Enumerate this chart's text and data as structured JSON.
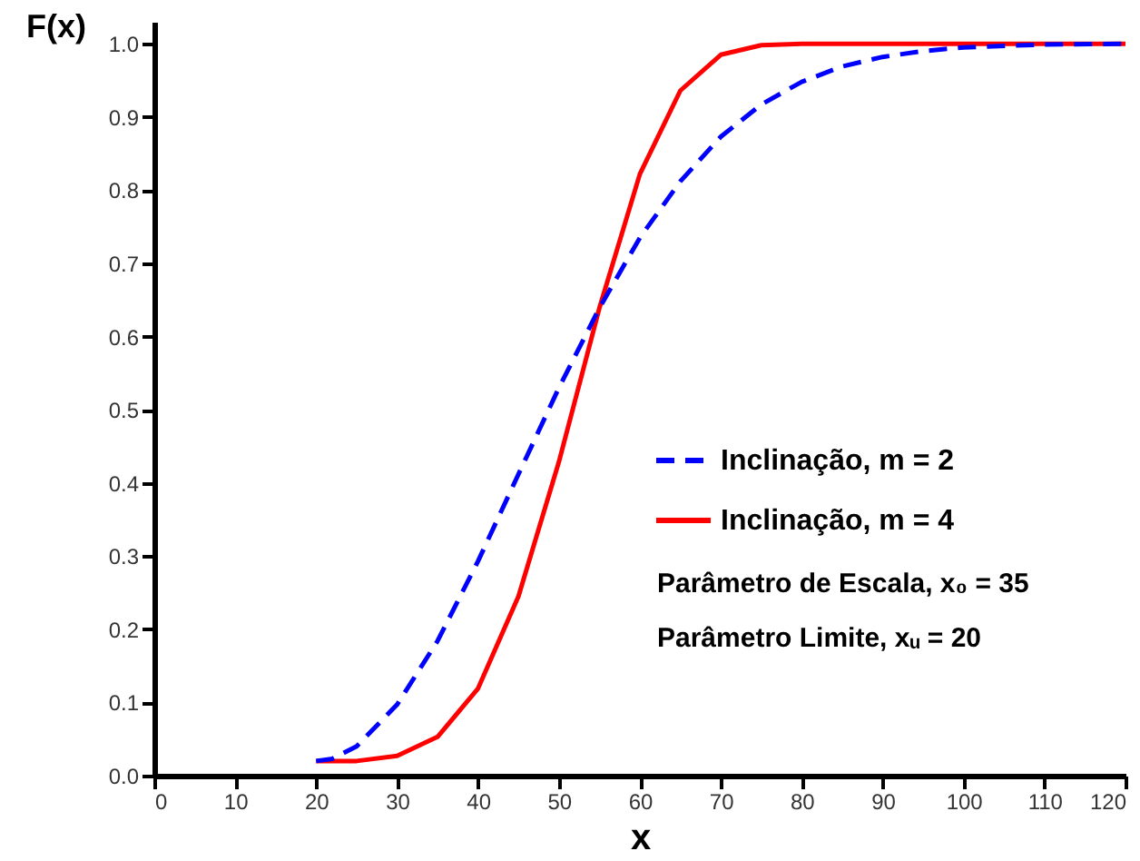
{
  "chart_data": {
    "type": "line",
    "xlabel": "x",
    "ylabel": "F(x)",
    "xlim": [
      0,
      120
    ],
    "ylim": [
      0,
      1.03
    ],
    "xticks": [
      0,
      10,
      20,
      30,
      40,
      50,
      60,
      70,
      80,
      90,
      100,
      110,
      120
    ],
    "yticks": [
      {
        "value": 0,
        "label": "0.0"
      },
      {
        "value": 0.1,
        "label": "0.1"
      },
      {
        "value": 0.2,
        "label": "0.2"
      },
      {
        "value": 0.3,
        "label": "0.3"
      },
      {
        "value": 0.4,
        "label": "0.4"
      },
      {
        "value": 0.5,
        "label": "0.5"
      },
      {
        "value": 0.6,
        "label": "0.6"
      },
      {
        "value": 0.7,
        "label": "0.7"
      },
      {
        "value": 0.8,
        "label": "0.8"
      },
      {
        "value": 0.9,
        "label": "0.9"
      },
      {
        "value": 1,
        "label": "1.0"
      }
    ],
    "grid": false,
    "legend": "bottom right",
    "marker": "none",
    "series": [
      {
        "name": "Inclinação, m = 2",
        "color": "#0000ff",
        "line_style": "dashed",
        "x": [
          20,
          22,
          25,
          30,
          35,
          40,
          45,
          50,
          55,
          60,
          65,
          70,
          75,
          80,
          85,
          90,
          95,
          100,
          110,
          120
        ],
        "values": [
          0.02,
          0.023,
          0.04,
          0.097,
          0.184,
          0.293,
          0.412,
          0.53,
          0.639,
          0.735,
          0.812,
          0.873,
          0.917,
          0.948,
          0.969,
          0.982,
          0.99,
          0.995,
          0.999,
          1.0
        ]
      },
      {
        "name": "Inclinação, m = 4",
        "color": "#ff0000",
        "line_style": "solid",
        "x": [
          20,
          25,
          30,
          35,
          40,
          45,
          50,
          55,
          60,
          65,
          70,
          75,
          80,
          120
        ],
        "values": [
          0.02,
          0.02,
          0.027,
          0.053,
          0.119,
          0.245,
          0.429,
          0.639,
          0.822,
          0.936,
          0.985,
          0.998,
          1.0,
          1.0
        ]
      }
    ],
    "annotations": [
      "Parâmetro de Escala, x₀ = 35",
      "Parâmetro Limite, xᵤ = 20"
    ]
  }
}
